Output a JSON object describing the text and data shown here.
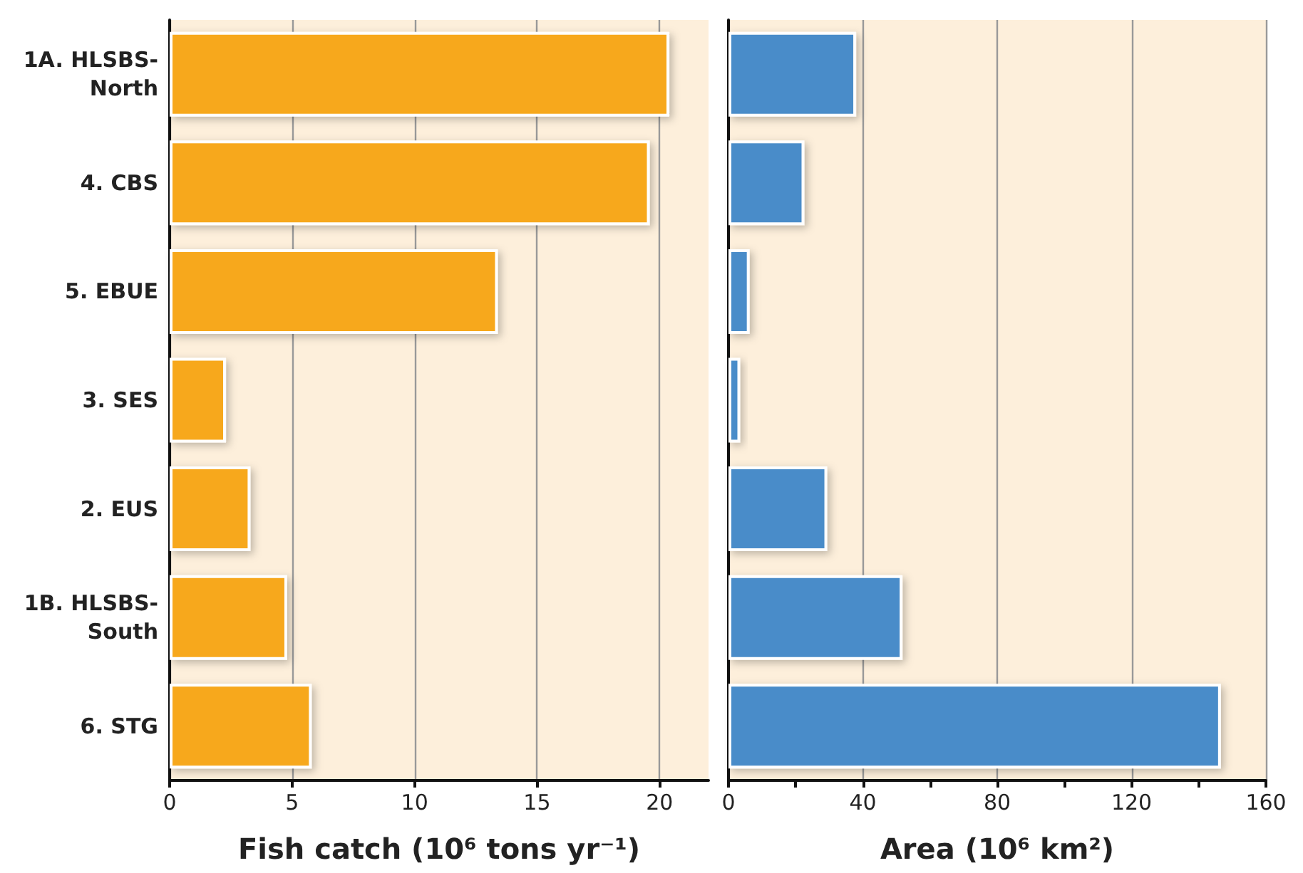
{
  "chart_data": [
    {
      "type": "bar",
      "orientation": "horizontal",
      "categories": [
        "1A. HLSBS-North",
        "4. CBS",
        "5. EBUE",
        "3. SES",
        "2. EUS",
        "1B. HLSBS-South",
        "6. STG"
      ],
      "values": [
        20.4,
        19.6,
        13.4,
        2.3,
        3.3,
        4.8,
        5.8
      ],
      "color": "#f7a81e",
      "xlabel": "Fish catch (10⁶ tons yr⁻¹)",
      "xlim": [
        0,
        22
      ],
      "xticks": [
        0,
        5,
        10,
        15,
        20
      ],
      "grid": "x"
    },
    {
      "type": "bar",
      "orientation": "horizontal",
      "categories": [
        null,
        null,
        null,
        null,
        null,
        null,
        null
      ],
      "values": [
        38,
        22.6,
        6.3,
        3.5,
        29.4,
        51.8,
        146.6
      ],
      "color": "#4a8cc9",
      "xlabel": "Area (10⁶ km²)",
      "xlim": [
        0,
        160
      ],
      "xticks": [
        0,
        {
          "value": 20,
          "label": null
        },
        40,
        {
          "value": 60,
          "label": null
        },
        80,
        {
          "value": 100,
          "label": null
        },
        120,
        {
          "value": 140,
          "label": null
        },
        160
      ],
      "grid": "x",
      "tick_labels": "x"
    }
  ]
}
